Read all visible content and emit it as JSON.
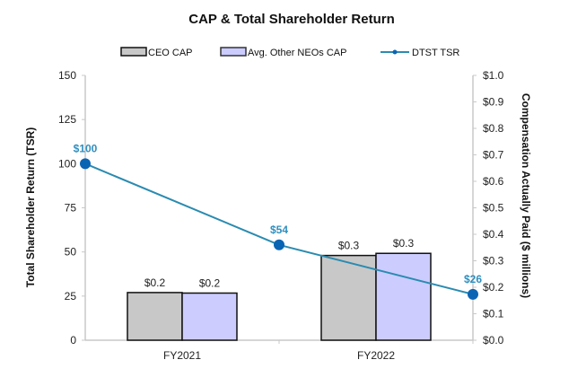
{
  "chart_data": {
    "type": "bar",
    "title": "CAP & Total Shareholder Return",
    "categories": [
      "FY2021",
      "FY2022"
    ],
    "series": [
      {
        "name": "CEO CAP",
        "type": "bar",
        "axis": "right",
        "values": [
          0.18,
          0.32
        ],
        "labels": [
          "$0.2",
          "$0.3"
        ],
        "color": "#c8c8c8"
      },
      {
        "name": "Avg. Other NEOs CAP",
        "type": "bar",
        "axis": "right",
        "values": [
          0.178,
          0.328
        ],
        "labels": [
          "$0.2",
          "$0.3"
        ],
        "color": "#ccccff"
      },
      {
        "name": "DTST TSR",
        "type": "line",
        "axis": "left",
        "x": [
          "start",
          "FY2021",
          "FY2022"
        ],
        "values": [
          100,
          54,
          26
        ],
        "labels": [
          "$100",
          "$54",
          "$26"
        ],
        "color": "#1f77b4"
      }
    ],
    "left_axis": {
      "label": "Total Shareholder Return (TSR)",
      "range": [
        0,
        150
      ],
      "ticks": [
        "0",
        "25",
        "50",
        "75",
        "100",
        "125",
        "150"
      ],
      "tick_values": [
        0,
        25,
        50,
        75,
        100,
        125,
        150
      ]
    },
    "right_axis": {
      "label": "Compensation Actually Paid ($ millions)",
      "range": [
        0,
        1.0
      ],
      "ticks": [
        "$0.0",
        "$0.1",
        "$0.2",
        "$0.3",
        "$0.4",
        "$0.5",
        "$0.6",
        "$0.7",
        "$0.8",
        "$0.9",
        "$1.0"
      ],
      "tick_values": [
        0,
        0.1,
        0.2,
        0.3,
        0.4,
        0.5,
        0.6,
        0.7,
        0.8,
        0.9,
        1.0
      ]
    },
    "legend": {
      "placement": "top",
      "entries": [
        "CEO CAP",
        "Avg. Other NEOs CAP",
        "DTST TSR"
      ]
    },
    "grid": false,
    "colors": {
      "axis": "#c8c8c8",
      "bar_border": "#111111",
      "tsr_line": "#2a8bb0",
      "tsr_marker": "#0a64b4",
      "tsr_label": "#2f8fbf"
    }
  }
}
